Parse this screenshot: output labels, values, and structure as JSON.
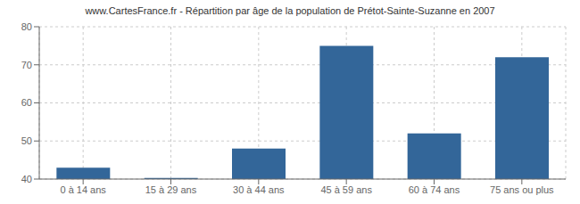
{
  "chart_data": {
    "type": "bar",
    "title": "www.CartesFrance.fr - Répartition par âge de la population de Prétot-Sainte-Suzanne en 2007",
    "categories": [
      "0 à 14 ans",
      "15 à 29 ans",
      "30 à 44 ans",
      "45 à 59 ans",
      "60 à 74 ans",
      "75 ans ou plus"
    ],
    "values": [
      43,
      40.3,
      48,
      75,
      52,
      72
    ],
    "color": "#336699",
    "ylim": [
      40,
      80
    ],
    "yticks": [
      40,
      50,
      60,
      70,
      80
    ],
    "grid": true
  }
}
